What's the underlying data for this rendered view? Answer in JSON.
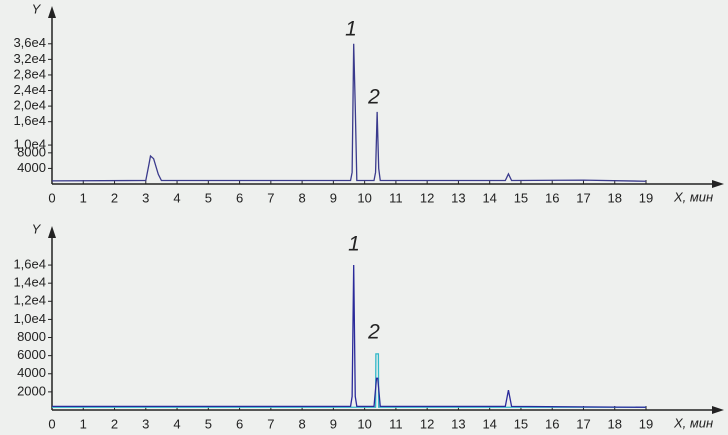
{
  "chart_data": [
    {
      "type": "line",
      "ylabel": "Y",
      "xlabel": "X, мин",
      "xlim": [
        0,
        19
      ],
      "xticks": [
        0,
        1,
        2,
        3,
        4,
        5,
        6,
        7,
        8,
        9,
        10,
        11,
        12,
        13,
        14,
        15,
        16,
        17,
        18,
        19
      ],
      "ylim": [
        0,
        38000
      ],
      "yticks": [
        {
          "value": 4000,
          "label": "4000"
        },
        {
          "value": 8000,
          "label": "8000"
        },
        {
          "value": 10000,
          "label": "1,0e4"
        },
        {
          "value": 16000,
          "label": "1,6e4"
        },
        {
          "value": 20000,
          "label": "2,0e4"
        },
        {
          "value": 24000,
          "label": "2,4e4"
        },
        {
          "value": 28000,
          "label": "2,8e4"
        },
        {
          "value": 32000,
          "label": "3,2e4"
        },
        {
          "value": 36000,
          "label": "3,6e4"
        }
      ],
      "annotations": [
        "1",
        "2"
      ],
      "series": [
        {
          "color": "#3a3a8c",
          "x": [
            0,
            3.0,
            3.1,
            3.15,
            3.25,
            3.4,
            3.5,
            9.55,
            9.6,
            9.65,
            9.7,
            9.75,
            10.3,
            10.35,
            10.4,
            10.45,
            10.5,
            14.5,
            14.6,
            14.7,
            17,
            19
          ],
          "values": [
            800,
            900,
            5000,
            7200,
            6500,
            2500,
            900,
            900,
            3000,
            36000,
            20000,
            900,
            900,
            3000,
            18500,
            4000,
            900,
            900,
            2600,
            900,
            1000,
            700
          ]
        }
      ]
    },
    {
      "type": "line",
      "ylabel": "Y",
      "xlabel": "X, мин",
      "xlim": [
        0,
        19
      ],
      "xticks": [
        0,
        1,
        2,
        3,
        4,
        5,
        6,
        7,
        8,
        9,
        10,
        11,
        12,
        13,
        14,
        15,
        16,
        17,
        18,
        19
      ],
      "ylim": [
        0,
        17000
      ],
      "yticks": [
        2000,
        4000,
        6000,
        8000,
        {
          "value": 10000,
          "label": "1,0e4"
        },
        {
          "value": 12000,
          "label": "1,2e4"
        },
        {
          "value": 14000,
          "label": "1,4e4"
        },
        {
          "value": 16000,
          "label": "1,6e4"
        }
      ],
      "annotations": [
        "1",
        "2"
      ],
      "series": [
        {
          "color": "#30b8c8",
          "x": [
            0,
            10.3,
            10.35,
            10.36,
            10.44,
            10.45,
            10.5,
            19
          ],
          "values": [
            300,
            300,
            300,
            6200,
            6200,
            300,
            300,
            300
          ]
        },
        {
          "color": "#2a2a9a",
          "x": [
            0,
            9.55,
            9.6,
            9.65,
            9.7,
            9.75,
            10.3,
            10.38,
            10.42,
            10.5,
            14.5,
            14.6,
            14.7,
            19
          ],
          "values": [
            400,
            400,
            1500,
            16000,
            1500,
            400,
            400,
            3500,
            3500,
            400,
            400,
            2200,
            400,
            300
          ]
        }
      ]
    }
  ]
}
